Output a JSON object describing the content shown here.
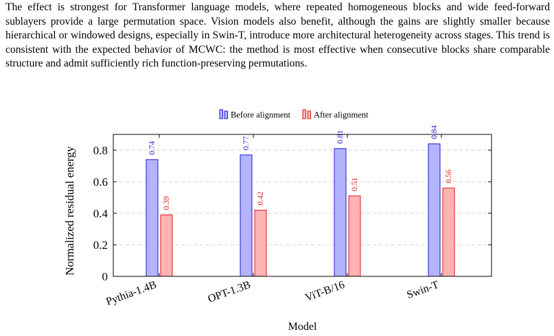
{
  "paragraph": "The effect is strongest for Transformer language models, where repeated homogeneous blocks and wide feed-forward sublayers provide a large permutation space. Vision models also benefit, although the gains are slightly smaller because hierarchical or windowed designs, especially in Swin-T, introduce more architectural heterogeneity across stages. This trend is consistent with the expected behavior of MCWC: the method is most effective when consecutive blocks share comparable structure and admit sufficiently rich function-preserving permutations.",
  "chart_data": {
    "type": "bar",
    "categories": [
      "Pythia-1.4B",
      "OPT-1.3B",
      "ViT-B/16",
      "Swin-T"
    ],
    "series": [
      {
        "name": "Before alignment",
        "values": [
          0.74,
          0.77,
          0.81,
          0.84
        ],
        "color": "#b3b3ff",
        "stroke": "#1a1acc",
        "label_color": "#1a1acc"
      },
      {
        "name": "After alignment",
        "values": [
          0.39,
          0.42,
          0.51,
          0.56
        ],
        "color": "#ffb3b3",
        "stroke": "#e01a1a",
        "label_color": "#e01a1a"
      }
    ],
    "xlabel": "Model",
    "ylabel": "Normalized residual energy",
    "ylim": [
      0,
      0.9
    ],
    "yticks": [
      0,
      0.2,
      0.4,
      0.6,
      0.8
    ],
    "ytick_labels": [
      "0",
      "0.2",
      "0.4",
      "0.6",
      "0.8"
    ],
    "grid": "horizontal dashed",
    "legend_position": "top-center",
    "data_labels": true
  }
}
